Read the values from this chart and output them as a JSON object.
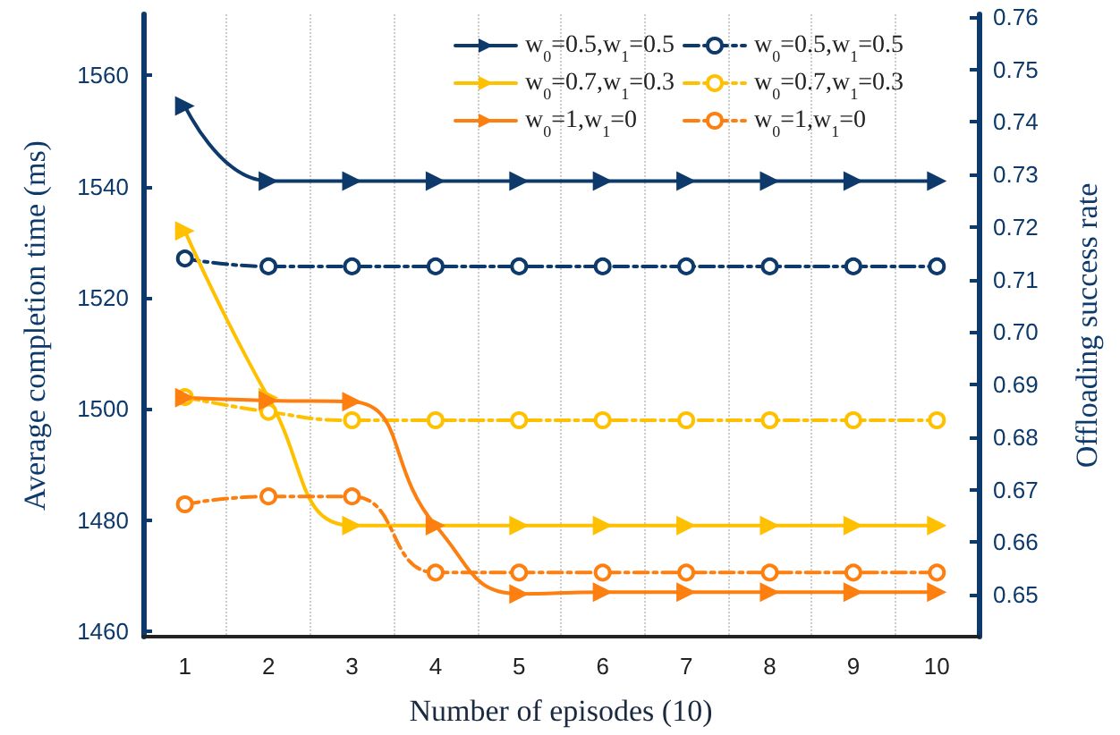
{
  "chart_data": {
    "type": "line",
    "xlabel": "Number of episodes (10)",
    "ylabel": "Average completion time (ms)",
    "y2label": "Offloading success rate",
    "categories": [
      "1",
      "2",
      "3",
      "4",
      "5",
      "6",
      "7",
      "8",
      "9",
      "10"
    ],
    "ylim": [
      1459,
      1571
    ],
    "yticks": [
      1460,
      1480,
      1500,
      1520,
      1540,
      1560
    ],
    "y2lim": [
      0.642,
      0.7605
    ],
    "y2ticks": [
      {
        "value": 0.65,
        "label": "0.65"
      },
      {
        "value": 0.66,
        "label": "0.66"
      },
      {
        "value": 0.67,
        "label": "0.67"
      },
      {
        "value": 0.68,
        "label": "0.68"
      },
      {
        "value": 0.69,
        "label": "0.69"
      },
      {
        "value": 0.7,
        "label": "0.70"
      },
      {
        "value": 0.71,
        "label": "0.71"
      },
      {
        "value": 0.72,
        "label": "0.72"
      },
      {
        "value": 0.73,
        "label": "0.73"
      },
      {
        "value": 0.74,
        "label": "0.74"
      },
      {
        "value": 0.75,
        "label": "0.75"
      },
      {
        "value": 0.76,
        "label": "0.76"
      }
    ],
    "grid": "x",
    "legend": "top right",
    "series": [
      {
        "name": "w$_{0}$=0.5,w$_{1}$=0.5",
        "color": "#0d3a6b",
        "marker": "triangle",
        "line_style": "solid",
        "values": [
          1554.5,
          1541,
          1541,
          1541,
          1541,
          1541,
          1541,
          1541,
          1541,
          1541
        ]
      },
      {
        "name": "w$_{0}$=0.5,w$_{1}$=0.5",
        "color": "#0d3a6b",
        "marker": "circle",
        "line_style": "dashed",
        "axis": "y2",
        "values": [
          0.714,
          0.7125,
          0.7125,
          0.7125,
          0.7125,
          0.7125,
          0.7125,
          0.7125,
          0.7125,
          0.7125
        ]
      },
      {
        "name": "w$_{0}$=0.7,w$_{1}$=0.3",
        "color": "#ffc000",
        "marker": "triangle",
        "line_style": "solid",
        "values": [
          1532,
          1502,
          1479,
          1479,
          1479,
          1479,
          1479,
          1479,
          1479,
          1479
        ]
      },
      {
        "name": "w$_{0}$=0.7,w$_{1}$=0.3",
        "color": "#ffc000",
        "marker": "circle",
        "line_style": "dashed",
        "axis": "y2",
        "values": [
          0.6876,
          0.6848,
          0.6832,
          0.6832,
          0.6832,
          0.6832,
          0.6832,
          0.6832,
          0.6832,
          0.6832
        ]
      },
      {
        "name": "w$_{0}$=1,w$_{1}$=0",
        "color": "#fc7f10",
        "marker": "triangle",
        "line_style": "solid",
        "values": [
          1502,
          1501.5,
          1501.3,
          1479,
          1466.7,
          1467,
          1467,
          1467,
          1467,
          1467
        ]
      },
      {
        "name": "w$_{0}$=1,w$_{1}$=0",
        "color": "#fc7f10",
        "marker": "circle",
        "line_style": "dashed",
        "axis": "y2",
        "values": [
          0.6672,
          0.6687,
          0.6687,
          0.6542,
          0.6542,
          0.6542,
          0.6542,
          0.6542,
          0.6542,
          0.6542
        ]
      }
    ]
  }
}
